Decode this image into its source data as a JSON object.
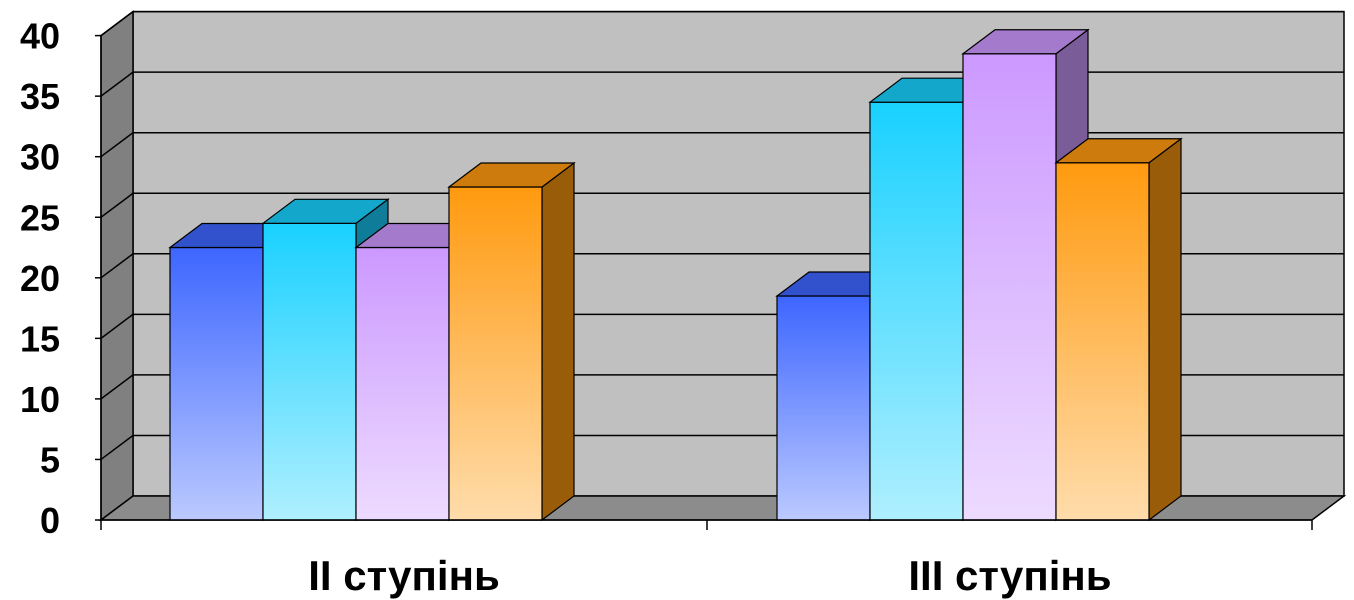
{
  "chart_data": {
    "type": "bar",
    "style": "3d-clustered-column",
    "categories": [
      "II ступінь",
      "III ступінь"
    ],
    "series": [
      {
        "values": [
          22.5,
          18.5
        ],
        "color": "#3d66ff"
      },
      {
        "values": [
          24.5,
          34.5
        ],
        "color": "#19d1ff"
      },
      {
        "values": [
          22.5,
          38.5
        ],
        "color": "#cc99ff"
      },
      {
        "values": [
          27.5,
          29.5
        ],
        "color": "#ff9a0f"
      }
    ],
    "yticks": [
      0,
      5,
      10,
      15,
      20,
      25,
      30,
      35,
      40
    ],
    "ylim": [
      0,
      40
    ],
    "grid": true,
    "legend": "none",
    "colors": {
      "wall": "#c0c0c0",
      "side_wall": "#808080",
      "floor": "#8c8c8c"
    }
  }
}
